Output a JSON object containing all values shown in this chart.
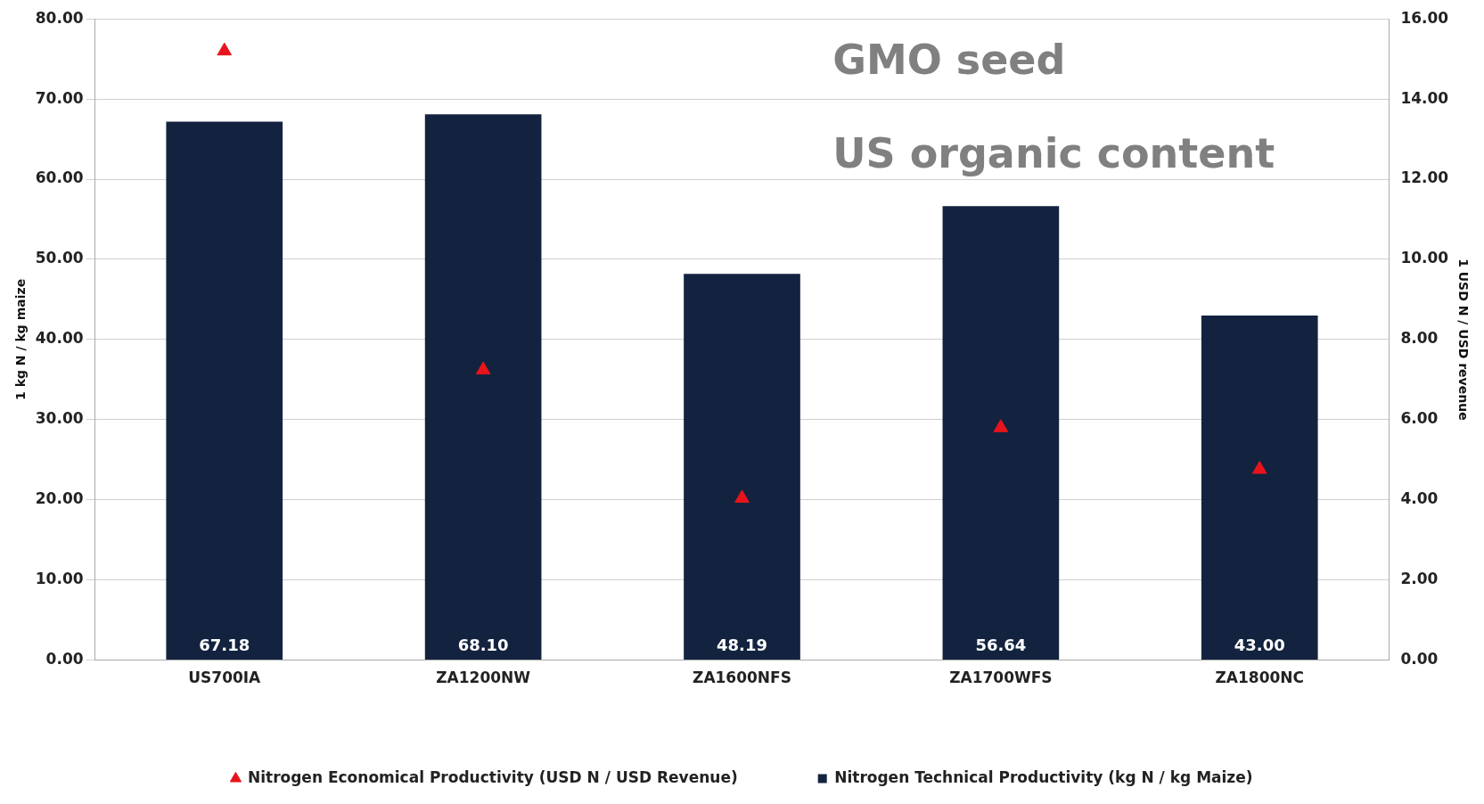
{
  "chart_data": {
    "type": "bar",
    "categories": [
      "US700IA",
      "ZA1200NW",
      "ZA1600NFS",
      "ZA1700WFS",
      "ZA1800NC"
    ],
    "series": [
      {
        "name": "Nitrogen Technical Productivity (kg N / kg Maize)",
        "color": "#13233f",
        "values": [
          67.18,
          68.1,
          48.19,
          56.64,
          43.0
        ],
        "value_labels": [
          "67.18",
          "68.10",
          "48.19",
          "56.64",
          "43.00"
        ]
      },
      {
        "name": "Nitrogen Economical Productivity (USD N / USD Revenue)",
        "type": "scatter",
        "axis": "y2",
        "marker": "triangle",
        "color": "#e8141b",
        "values": [
          15.2,
          7.24,
          4.04,
          5.8,
          4.76
        ]
      }
    ],
    "ylabel": "1 kg N / kg maize",
    "y2label": "1 USD N / USD revenue",
    "ylim": [
      0,
      80
    ],
    "yticks": [
      {
        "value": 0,
        "label": "0.00"
      },
      {
        "value": 10,
        "label": "10.00"
      },
      {
        "value": 20,
        "label": "20.00"
      },
      {
        "value": 30,
        "label": "30.00"
      },
      {
        "value": 40,
        "label": "40.00"
      },
      {
        "value": 50,
        "label": "50.00"
      },
      {
        "value": 60,
        "label": "60.00"
      },
      {
        "value": 70,
        "label": "70.00"
      },
      {
        "value": 80,
        "label": "80.00"
      }
    ],
    "y2lim": [
      0,
      16
    ],
    "y2ticks": [
      {
        "value": 0,
        "label": "0.00"
      },
      {
        "value": 2,
        "label": "2.00"
      },
      {
        "value": 4,
        "label": "4.00"
      },
      {
        "value": 6,
        "label": "6.00"
      },
      {
        "value": 8,
        "label": "8.00"
      },
      {
        "value": 10,
        "label": "10.00"
      },
      {
        "value": 12,
        "label": "12.00"
      },
      {
        "value": 14,
        "label": "14.00"
      },
      {
        "value": 16,
        "label": "16.00"
      }
    ],
    "annotations": [
      "GMO seed",
      "US organic content"
    ],
    "grid": "y",
    "legend": "bottom"
  }
}
